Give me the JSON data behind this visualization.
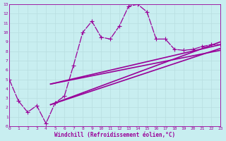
{
  "bg_color": "#c8eef0",
  "line_color": "#990099",
  "grid_color": "#b8dde0",
  "xlabel": "Windchill (Refroidissement éolien,°C)",
  "xlabel_color": "#990099",
  "tick_color": "#990099",
  "xmin": 0,
  "xmax": 23,
  "ymin": 0,
  "ymax": 13,
  "main_line_x": [
    0,
    1,
    2,
    3,
    4,
    5,
    6,
    7,
    8,
    9,
    10,
    11,
    12,
    13,
    14,
    15,
    16,
    17,
    18,
    19,
    20,
    21,
    22,
    23
  ],
  "main_line_y": [
    5.0,
    2.7,
    1.5,
    2.2,
    0.3,
    2.5,
    3.2,
    6.5,
    10.0,
    11.2,
    9.5,
    9.3,
    10.7,
    12.8,
    13.0,
    12.2,
    9.3,
    9.3,
    8.2,
    8.1,
    8.2,
    8.5,
    8.7,
    8.7
  ],
  "ref_lines": [
    {
      "x": [
        4.5,
        23
      ],
      "y": [
        2.3,
        9.0
      ]
    },
    {
      "x": [
        4.5,
        23
      ],
      "y": [
        2.3,
        8.3
      ]
    },
    {
      "x": [
        4.5,
        23
      ],
      "y": [
        4.5,
        8.7
      ]
    },
    {
      "x": [
        4.5,
        23
      ],
      "y": [
        4.5,
        8.1
      ]
    }
  ],
  "marker": "+",
  "marker_size": 4,
  "linewidth_main": 0.9,
  "linewidth_ref": 1.2
}
